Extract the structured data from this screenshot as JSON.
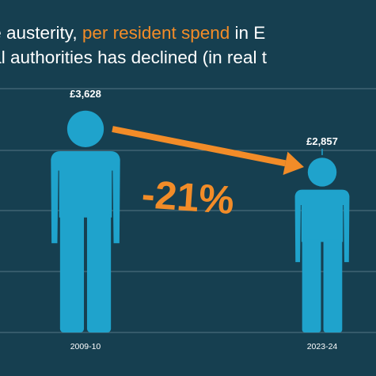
{
  "title": {
    "part1": "ce austerity, ",
    "highlight": "per resident spend",
    "part2": " in E",
    "line2": "cal authorities has declined (in real t"
  },
  "colors": {
    "background": "#163f50",
    "figure": "#1fa3cc",
    "accent": "#f28c28",
    "gridline": "#6f8c99"
  },
  "chart_data": {
    "type": "bar",
    "categories": [
      "2009-10",
      "2023-24"
    ],
    "values": [
      3628,
      2857
    ],
    "value_labels": [
      "£3,628",
      "£2,857"
    ],
    "change_label": "-21%",
    "ylim": [
      0,
      4000
    ],
    "grid": true,
    "legend": "none",
    "mark": "person-icon"
  }
}
